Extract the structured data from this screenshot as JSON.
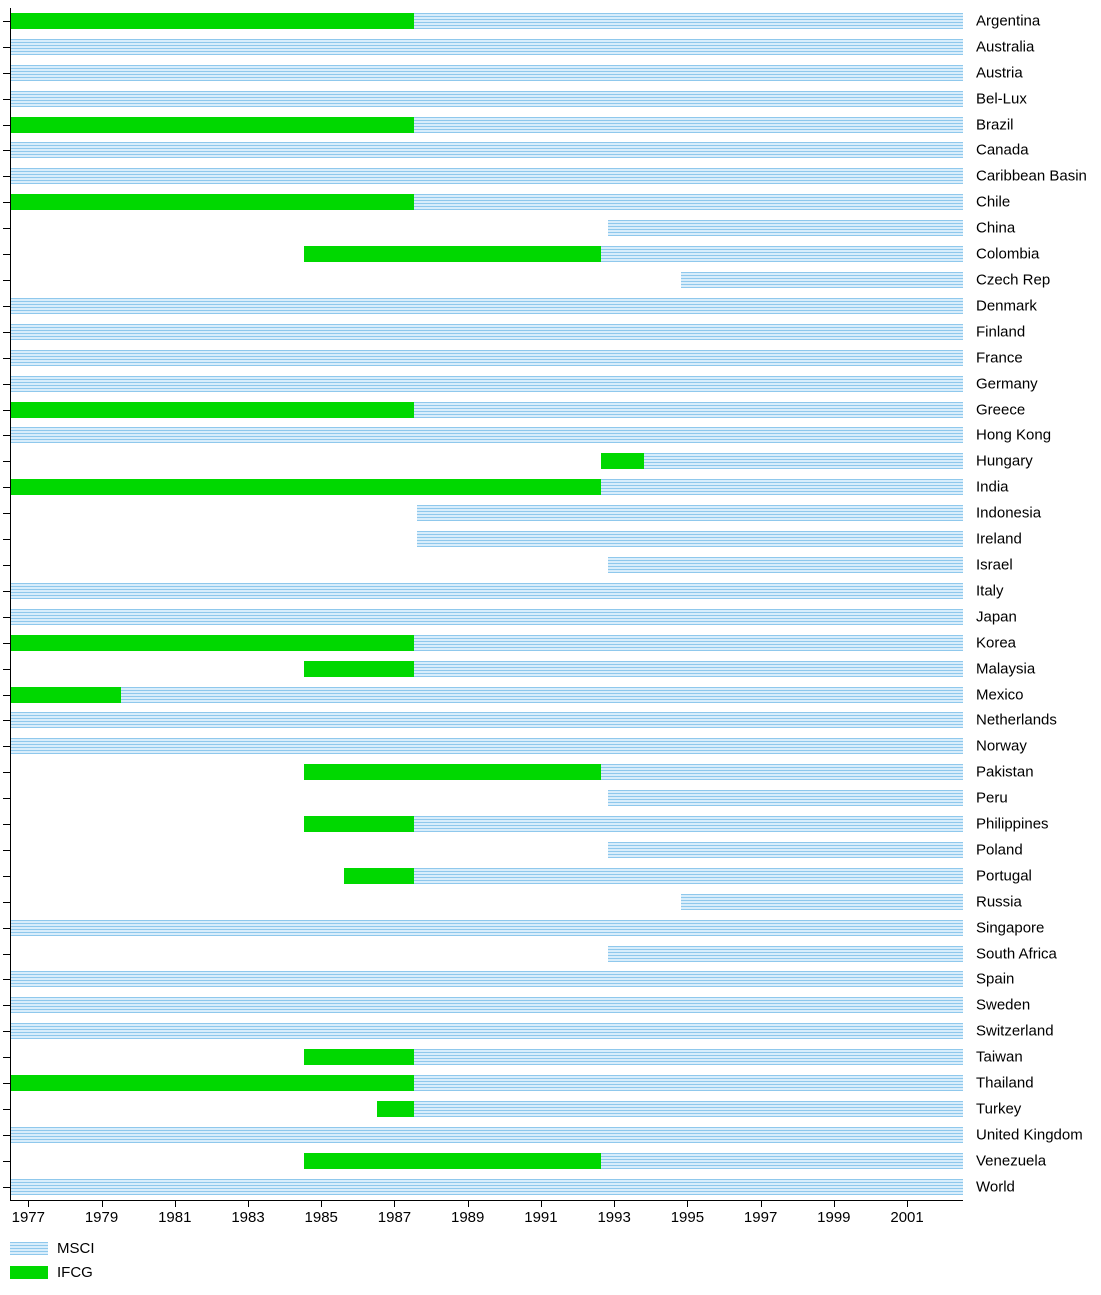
{
  "chart_data": {
    "type": "bar",
    "subtype": "timeline-gantt",
    "title": "",
    "xlabel": "",
    "ylabel": "",
    "x_range": [
      1976.5,
      2002.5
    ],
    "x_ticks": [
      1977,
      1979,
      1981,
      1983,
      1985,
      1987,
      1989,
      1991,
      1993,
      1995,
      1997,
      1999,
      2001
    ],
    "grid": "off",
    "legend_position": "bottom-left",
    "legend": [
      {
        "name": "MSCI",
        "style": "striped-blue"
      },
      {
        "name": "IFCG",
        "style": "solid-green"
      }
    ],
    "colors": {
      "msci_base": "#d8edfb",
      "msci_stripe": "#8fc8ec",
      "ifcg": "#00d800",
      "axis": "#000000"
    },
    "rows": [
      {
        "country": "Argentina",
        "segments": [
          {
            "series": "IFCG",
            "start": 1976.5,
            "end": 1987.5
          },
          {
            "series": "MSCI",
            "start": 1987.5,
            "end": 2002.5
          }
        ]
      },
      {
        "country": "Australia",
        "segments": [
          {
            "series": "MSCI",
            "start": 1976.5,
            "end": 2002.5
          }
        ]
      },
      {
        "country": "Austria",
        "segments": [
          {
            "series": "MSCI",
            "start": 1976.5,
            "end": 2002.5
          }
        ]
      },
      {
        "country": "Bel-Lux",
        "segments": [
          {
            "series": "MSCI",
            "start": 1976.5,
            "end": 2002.5
          }
        ]
      },
      {
        "country": "Brazil",
        "segments": [
          {
            "series": "IFCG",
            "start": 1976.5,
            "end": 1987.5
          },
          {
            "series": "MSCI",
            "start": 1987.5,
            "end": 2002.5
          }
        ]
      },
      {
        "country": "Canada",
        "segments": [
          {
            "series": "MSCI",
            "start": 1976.5,
            "end": 2002.5
          }
        ]
      },
      {
        "country": "Caribbean Basin",
        "segments": [
          {
            "series": "MSCI",
            "start": 1976.5,
            "end": 2002.5
          }
        ]
      },
      {
        "country": "Chile",
        "segments": [
          {
            "series": "IFCG",
            "start": 1976.5,
            "end": 1987.5
          },
          {
            "series": "MSCI",
            "start": 1987.5,
            "end": 2002.5
          }
        ]
      },
      {
        "country": "China",
        "segments": [
          {
            "series": "MSCI",
            "start": 1992.8,
            "end": 2002.5
          }
        ]
      },
      {
        "country": "Colombia",
        "segments": [
          {
            "series": "IFCG",
            "start": 1984.5,
            "end": 1992.6
          },
          {
            "series": "MSCI",
            "start": 1992.6,
            "end": 2002.5
          }
        ]
      },
      {
        "country": "Czech Rep",
        "segments": [
          {
            "series": "MSCI",
            "start": 1994.8,
            "end": 2002.5
          }
        ]
      },
      {
        "country": "Denmark",
        "segments": [
          {
            "series": "MSCI",
            "start": 1976.5,
            "end": 2002.5
          }
        ]
      },
      {
        "country": "Finland",
        "segments": [
          {
            "series": "MSCI",
            "start": 1976.5,
            "end": 2002.5
          }
        ]
      },
      {
        "country": "France",
        "segments": [
          {
            "series": "MSCI",
            "start": 1976.5,
            "end": 2002.5
          }
        ]
      },
      {
        "country": "Germany",
        "segments": [
          {
            "series": "MSCI",
            "start": 1976.5,
            "end": 2002.5
          }
        ]
      },
      {
        "country": "Greece",
        "segments": [
          {
            "series": "IFCG",
            "start": 1976.5,
            "end": 1987.5
          },
          {
            "series": "MSCI",
            "start": 1987.5,
            "end": 2002.5
          }
        ]
      },
      {
        "country": "Hong Kong",
        "segments": [
          {
            "series": "MSCI",
            "start": 1976.5,
            "end": 2002.5
          }
        ]
      },
      {
        "country": "Hungary",
        "segments": [
          {
            "series": "IFCG",
            "start": 1992.6,
            "end": 1993.8
          },
          {
            "series": "MSCI",
            "start": 1993.8,
            "end": 2002.5
          }
        ]
      },
      {
        "country": "India",
        "segments": [
          {
            "series": "IFCG",
            "start": 1976.5,
            "end": 1992.6
          },
          {
            "series": "MSCI",
            "start": 1992.6,
            "end": 2002.5
          }
        ]
      },
      {
        "country": "Indonesia",
        "segments": [
          {
            "series": "MSCI",
            "start": 1987.6,
            "end": 2002.5
          }
        ]
      },
      {
        "country": "Ireland",
        "segments": [
          {
            "series": "MSCI",
            "start": 1987.6,
            "end": 2002.5
          }
        ]
      },
      {
        "country": "Israel",
        "segments": [
          {
            "series": "MSCI",
            "start": 1992.8,
            "end": 2002.5
          }
        ]
      },
      {
        "country": "Italy",
        "segments": [
          {
            "series": "MSCI",
            "start": 1976.5,
            "end": 2002.5
          }
        ]
      },
      {
        "country": "Japan",
        "segments": [
          {
            "series": "MSCI",
            "start": 1976.5,
            "end": 2002.5
          }
        ]
      },
      {
        "country": "Korea",
        "segments": [
          {
            "series": "IFCG",
            "start": 1976.5,
            "end": 1987.5
          },
          {
            "series": "MSCI",
            "start": 1987.5,
            "end": 2002.5
          }
        ]
      },
      {
        "country": "Malaysia",
        "segments": [
          {
            "series": "IFCG",
            "start": 1984.5,
            "end": 1987.5
          },
          {
            "series": "MSCI",
            "start": 1987.5,
            "end": 2002.5
          }
        ]
      },
      {
        "country": "Mexico",
        "segments": [
          {
            "series": "IFCG",
            "start": 1976.5,
            "end": 1979.5
          },
          {
            "series": "MSCI",
            "start": 1979.5,
            "end": 2002.5
          }
        ]
      },
      {
        "country": "Netherlands",
        "segments": [
          {
            "series": "MSCI",
            "start": 1976.5,
            "end": 2002.5
          }
        ]
      },
      {
        "country": "Norway",
        "segments": [
          {
            "series": "MSCI",
            "start": 1976.5,
            "end": 2002.5
          }
        ]
      },
      {
        "country": "Pakistan",
        "segments": [
          {
            "series": "IFCG",
            "start": 1984.5,
            "end": 1992.6
          },
          {
            "series": "MSCI",
            "start": 1992.6,
            "end": 2002.5
          }
        ]
      },
      {
        "country": "Peru",
        "segments": [
          {
            "series": "MSCI",
            "start": 1992.8,
            "end": 2002.5
          }
        ]
      },
      {
        "country": "Philippines",
        "segments": [
          {
            "series": "IFCG",
            "start": 1984.5,
            "end": 1987.5
          },
          {
            "series": "MSCI",
            "start": 1987.5,
            "end": 2002.5
          }
        ]
      },
      {
        "country": "Poland",
        "segments": [
          {
            "series": "MSCI",
            "start": 1992.8,
            "end": 2002.5
          }
        ]
      },
      {
        "country": "Portugal",
        "segments": [
          {
            "series": "IFCG",
            "start": 1985.6,
            "end": 1987.5
          },
          {
            "series": "MSCI",
            "start": 1987.5,
            "end": 2002.5
          }
        ]
      },
      {
        "country": "Russia",
        "segments": [
          {
            "series": "MSCI",
            "start": 1994.8,
            "end": 2002.5
          }
        ]
      },
      {
        "country": "Singapore",
        "segments": [
          {
            "series": "MSCI",
            "start": 1976.5,
            "end": 2002.5
          }
        ]
      },
      {
        "country": "South Africa",
        "segments": [
          {
            "series": "MSCI",
            "start": 1992.8,
            "end": 2002.5
          }
        ]
      },
      {
        "country": "Spain",
        "segments": [
          {
            "series": "MSCI",
            "start": 1976.5,
            "end": 2002.5
          }
        ]
      },
      {
        "country": "Sweden",
        "segments": [
          {
            "series": "MSCI",
            "start": 1976.5,
            "end": 2002.5
          }
        ]
      },
      {
        "country": "Switzerland",
        "segments": [
          {
            "series": "MSCI",
            "start": 1976.5,
            "end": 2002.5
          }
        ]
      },
      {
        "country": "Taiwan",
        "segments": [
          {
            "series": "IFCG",
            "start": 1984.5,
            "end": 1987.5
          },
          {
            "series": "MSCI",
            "start": 1987.5,
            "end": 2002.5
          }
        ]
      },
      {
        "country": "Thailand",
        "segments": [
          {
            "series": "IFCG",
            "start": 1976.5,
            "end": 1987.5
          },
          {
            "series": "MSCI",
            "start": 1987.5,
            "end": 2002.5
          }
        ]
      },
      {
        "country": "Turkey",
        "segments": [
          {
            "series": "IFCG",
            "start": 1986.5,
            "end": 1987.5
          },
          {
            "series": "MSCI",
            "start": 1987.5,
            "end": 2002.5
          }
        ]
      },
      {
        "country": "United Kingdom",
        "segments": [
          {
            "series": "MSCI",
            "start": 1976.5,
            "end": 2002.5
          }
        ]
      },
      {
        "country": "Venezuela",
        "segments": [
          {
            "series": "IFCG",
            "start": 1984.5,
            "end": 1992.6
          },
          {
            "series": "MSCI",
            "start": 1992.6,
            "end": 2002.5
          }
        ]
      },
      {
        "country": "World",
        "segments": [
          {
            "series": "MSCI",
            "start": 1976.5,
            "end": 2002.5
          }
        ]
      }
    ]
  }
}
